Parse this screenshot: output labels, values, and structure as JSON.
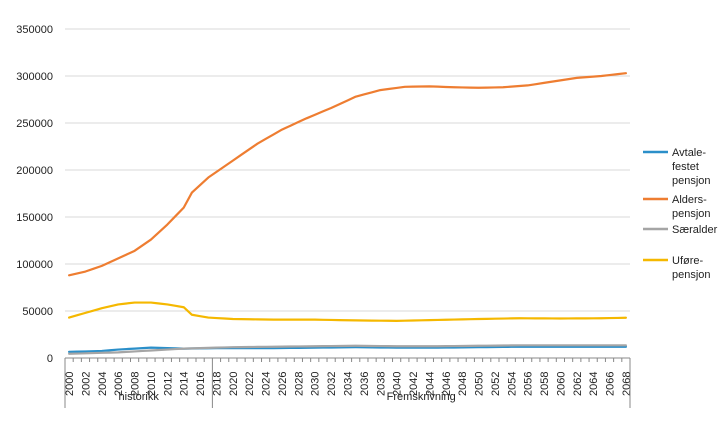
{
  "chart_data": {
    "type": "line",
    "title": "",
    "xlabel": "",
    "ylabel": "",
    "ylim": [
      0,
      350000
    ],
    "yticks": [
      0,
      50000,
      100000,
      150000,
      200000,
      250000,
      300000,
      350000
    ],
    "ytick_labels": [
      "0",
      "50000",
      "100000",
      "150000",
      "200000",
      "250000",
      "300000",
      "350000"
    ],
    "grid": true,
    "legend_position": "right",
    "categories": [
      2000,
      2001,
      2002,
      2003,
      2004,
      2005,
      2006,
      2007,
      2008,
      2009,
      2010,
      2011,
      2012,
      2013,
      2014,
      2015,
      2016,
      2017,
      2018,
      2019,
      2020,
      2021,
      2022,
      2023,
      2024,
      2025,
      2026,
      2027,
      2028,
      2029,
      2030,
      2031,
      2032,
      2033,
      2034,
      2035,
      2036,
      2037,
      2038,
      2039,
      2040,
      2041,
      2042,
      2043,
      2044,
      2045,
      2046,
      2047,
      2048,
      2049,
      2050,
      2051,
      2052,
      2053,
      2054,
      2055,
      2056,
      2057,
      2058,
      2059,
      2060,
      2061,
      2062,
      2063,
      2064,
      2065,
      2066,
      2067,
      2068
    ],
    "xtick_labels": [
      "2000",
      "2002",
      "2004",
      "2006",
      "2008",
      "2010",
      "2012",
      "2014",
      "2016",
      "2018",
      "2020",
      "2022",
      "2024",
      "2026",
      "2028",
      "2030",
      "2032",
      "2034",
      "2036",
      "2038",
      "2040",
      "2042",
      "2044",
      "2046",
      "2048",
      "2050",
      "2052",
      "2054",
      "2056",
      "2058",
      "2060",
      "2062",
      "2064",
      "2066",
      "2068"
    ],
    "groups": [
      {
        "label": "historikk",
        "from": 2000,
        "to": 2017
      },
      {
        "label": "Fremskrivning",
        "from": 2018,
        "to": 2068
      }
    ],
    "series": [
      {
        "name": "Avtale-festet pensjon",
        "legend_lines": [
          "Avtale-",
          "festet",
          "pensjon"
        ],
        "color": "#2b8fc9",
        "anchors": [
          [
            2000,
            6500
          ],
          [
            2002,
            7000
          ],
          [
            2004,
            7500
          ],
          [
            2006,
            9000
          ],
          [
            2008,
            10000
          ],
          [
            2010,
            11000
          ],
          [
            2012,
            10500
          ],
          [
            2014,
            10000
          ],
          [
            2016,
            10200
          ],
          [
            2018,
            10500
          ],
          [
            2020,
            10500
          ],
          [
            2025,
            10500
          ],
          [
            2030,
            11000
          ],
          [
            2035,
            11500
          ],
          [
            2040,
            11000
          ],
          [
            2045,
            11000
          ],
          [
            2050,
            11500
          ],
          [
            2055,
            12000
          ],
          [
            2060,
            12000
          ],
          [
            2065,
            12000
          ],
          [
            2068,
            12000
          ]
        ]
      },
      {
        "name": "Alders-pensjon",
        "legend_lines": [
          "Alders-",
          "pensjon"
        ],
        "color": "#ee7d31",
        "anchors": [
          [
            2000,
            88000
          ],
          [
            2002,
            92000
          ],
          [
            2004,
            98000
          ],
          [
            2006,
            106000
          ],
          [
            2008,
            114000
          ],
          [
            2010,
            126000
          ],
          [
            2012,
            142000
          ],
          [
            2014,
            160000
          ],
          [
            2015,
            176000
          ],
          [
            2017,
            192000
          ],
          [
            2020,
            210000
          ],
          [
            2023,
            228000
          ],
          [
            2026,
            243000
          ],
          [
            2029,
            255000
          ],
          [
            2032,
            266000
          ],
          [
            2035,
            278000
          ],
          [
            2038,
            285000
          ],
          [
            2041,
            288500
          ],
          [
            2044,
            289000
          ],
          [
            2047,
            288000
          ],
          [
            2050,
            287500
          ],
          [
            2053,
            288000
          ],
          [
            2056,
            290000
          ],
          [
            2059,
            294000
          ],
          [
            2062,
            298000
          ],
          [
            2065,
            300000
          ],
          [
            2068,
            303000
          ]
        ]
      },
      {
        "name": "Særalder",
        "legend_lines": [
          "Særalder"
        ],
        "color": "#a5a5a5",
        "anchors": [
          [
            2000,
            4500
          ],
          [
            2002,
            5000
          ],
          [
            2004,
            5500
          ],
          [
            2006,
            6000
          ],
          [
            2008,
            7000
          ],
          [
            2010,
            8000
          ],
          [
            2012,
            9000
          ],
          [
            2014,
            10000
          ],
          [
            2016,
            10500
          ],
          [
            2018,
            11000
          ],
          [
            2020,
            11500
          ],
          [
            2025,
            12000
          ],
          [
            2030,
            12500
          ],
          [
            2035,
            13000
          ],
          [
            2040,
            12500
          ],
          [
            2045,
            12500
          ],
          [
            2050,
            13000
          ],
          [
            2055,
            13500
          ],
          [
            2060,
            13500
          ],
          [
            2065,
            13500
          ],
          [
            2068,
            13500
          ]
        ]
      },
      {
        "name": "Uføre-pensjon",
        "legend_lines": [
          "Uføre-",
          "pensjon"
        ],
        "color": "#f5b800",
        "anchors": [
          [
            2000,
            43000
          ],
          [
            2002,
            48000
          ],
          [
            2004,
            53000
          ],
          [
            2006,
            57000
          ],
          [
            2008,
            59000
          ],
          [
            2010,
            59000
          ],
          [
            2012,
            57000
          ],
          [
            2014,
            54000
          ],
          [
            2015,
            46000
          ],
          [
            2017,
            43000
          ],
          [
            2020,
            41500
          ],
          [
            2025,
            40800
          ],
          [
            2030,
            40800
          ],
          [
            2035,
            40000
          ],
          [
            2040,
            39500
          ],
          [
            2045,
            40500
          ],
          [
            2050,
            41500
          ],
          [
            2055,
            42300
          ],
          [
            2060,
            42000
          ],
          [
            2065,
            42300
          ],
          [
            2068,
            42800
          ]
        ]
      }
    ]
  }
}
